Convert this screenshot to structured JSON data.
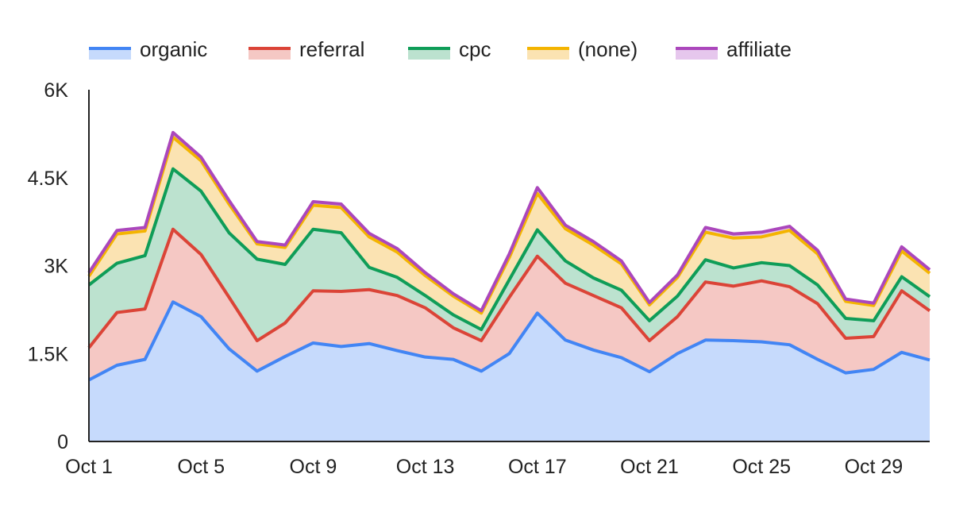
{
  "chart_data": {
    "type": "area",
    "stacked": true,
    "title": "",
    "xlabel": "",
    "ylabel": "",
    "ylim": [
      0,
      6000
    ],
    "x_tick_labels": [
      "Oct 1",
      "Oct 5",
      "Oct 9",
      "Oct 13",
      "Oct 17",
      "Oct 21",
      "Oct 25",
      "Oct 29"
    ],
    "y_tick_labels": [
      "0",
      "1.5K",
      "3K",
      "4.5K",
      "6K"
    ],
    "legend_position": "top",
    "categories": [
      "Oct 1",
      "Oct 2",
      "Oct 3",
      "Oct 4",
      "Oct 5",
      "Oct 6",
      "Oct 7",
      "Oct 8",
      "Oct 9",
      "Oct 10",
      "Oct 11",
      "Oct 12",
      "Oct 13",
      "Oct 14",
      "Oct 15",
      "Oct 16",
      "Oct 17",
      "Oct 18",
      "Oct 19",
      "Oct 20",
      "Oct 21",
      "Oct 22",
      "Oct 23",
      "Oct 24",
      "Oct 25",
      "Oct 26",
      "Oct 27",
      "Oct 28",
      "Oct 29",
      "Oct 30",
      "Oct 31"
    ],
    "series": [
      {
        "name": "organic",
        "line_color": "#4285f4",
        "fill_color": "#c6dafc",
        "values": [
          1050,
          1300,
          1400,
          2380,
          2130,
          1580,
          1200,
          1450,
          1680,
          1620,
          1670,
          1550,
          1440,
          1400,
          1200,
          1500,
          2190,
          1730,
          1560,
          1430,
          1190,
          1500,
          1730,
          1720,
          1700,
          1650,
          1400,
          1170,
          1230,
          1520,
          1390
        ]
      },
      {
        "name": "referral",
        "line_color": "#db4437",
        "fill_color": "#f5c8c4",
        "values": [
          550,
          900,
          860,
          1240,
          1060,
          880,
          520,
          570,
          890,
          940,
          920,
          940,
          840,
          540,
          520,
          960,
          970,
          970,
          930,
          850,
          530,
          630,
          990,
          930,
          1040,
          990,
          950,
          590,
          560,
          1050,
          840
        ]
      },
      {
        "name": "cpc",
        "line_color": "#0f9d58",
        "fill_color": "#bce2cf",
        "values": [
          1070,
          840,
          910,
          1030,
          1080,
          1100,
          1390,
          1000,
          1050,
          1000,
          380,
          310,
          210,
          220,
          190,
          300,
          450,
          380,
          300,
          300,
          340,
          350,
          380,
          310,
          310,
          360,
          320,
          340,
          270,
          240,
          240
        ]
      },
      {
        "name": "(none)",
        "line_color": "#f4b400",
        "fill_color": "#fbe3b2",
        "values": [
          150,
          500,
          420,
          540,
          520,
          490,
          260,
          290,
          410,
          430,
          520,
          430,
          340,
          320,
          280,
          380,
          620,
          550,
          560,
          450,
          270,
          320,
          470,
          510,
          440,
          600,
          530,
          290,
          260,
          440,
          400
        ]
      },
      {
        "name": "affiliate",
        "line_color": "#ab47bc",
        "fill_color": "#e6c7ed",
        "values": [
          60,
          60,
          60,
          80,
          60,
          60,
          40,
          40,
          60,
          60,
          60,
          60,
          50,
          40,
          40,
          60,
          100,
          60,
          60,
          50,
          40,
          40,
          80,
          70,
          80,
          70,
          60,
          40,
          40,
          70,
          60
        ]
      }
    ]
  }
}
